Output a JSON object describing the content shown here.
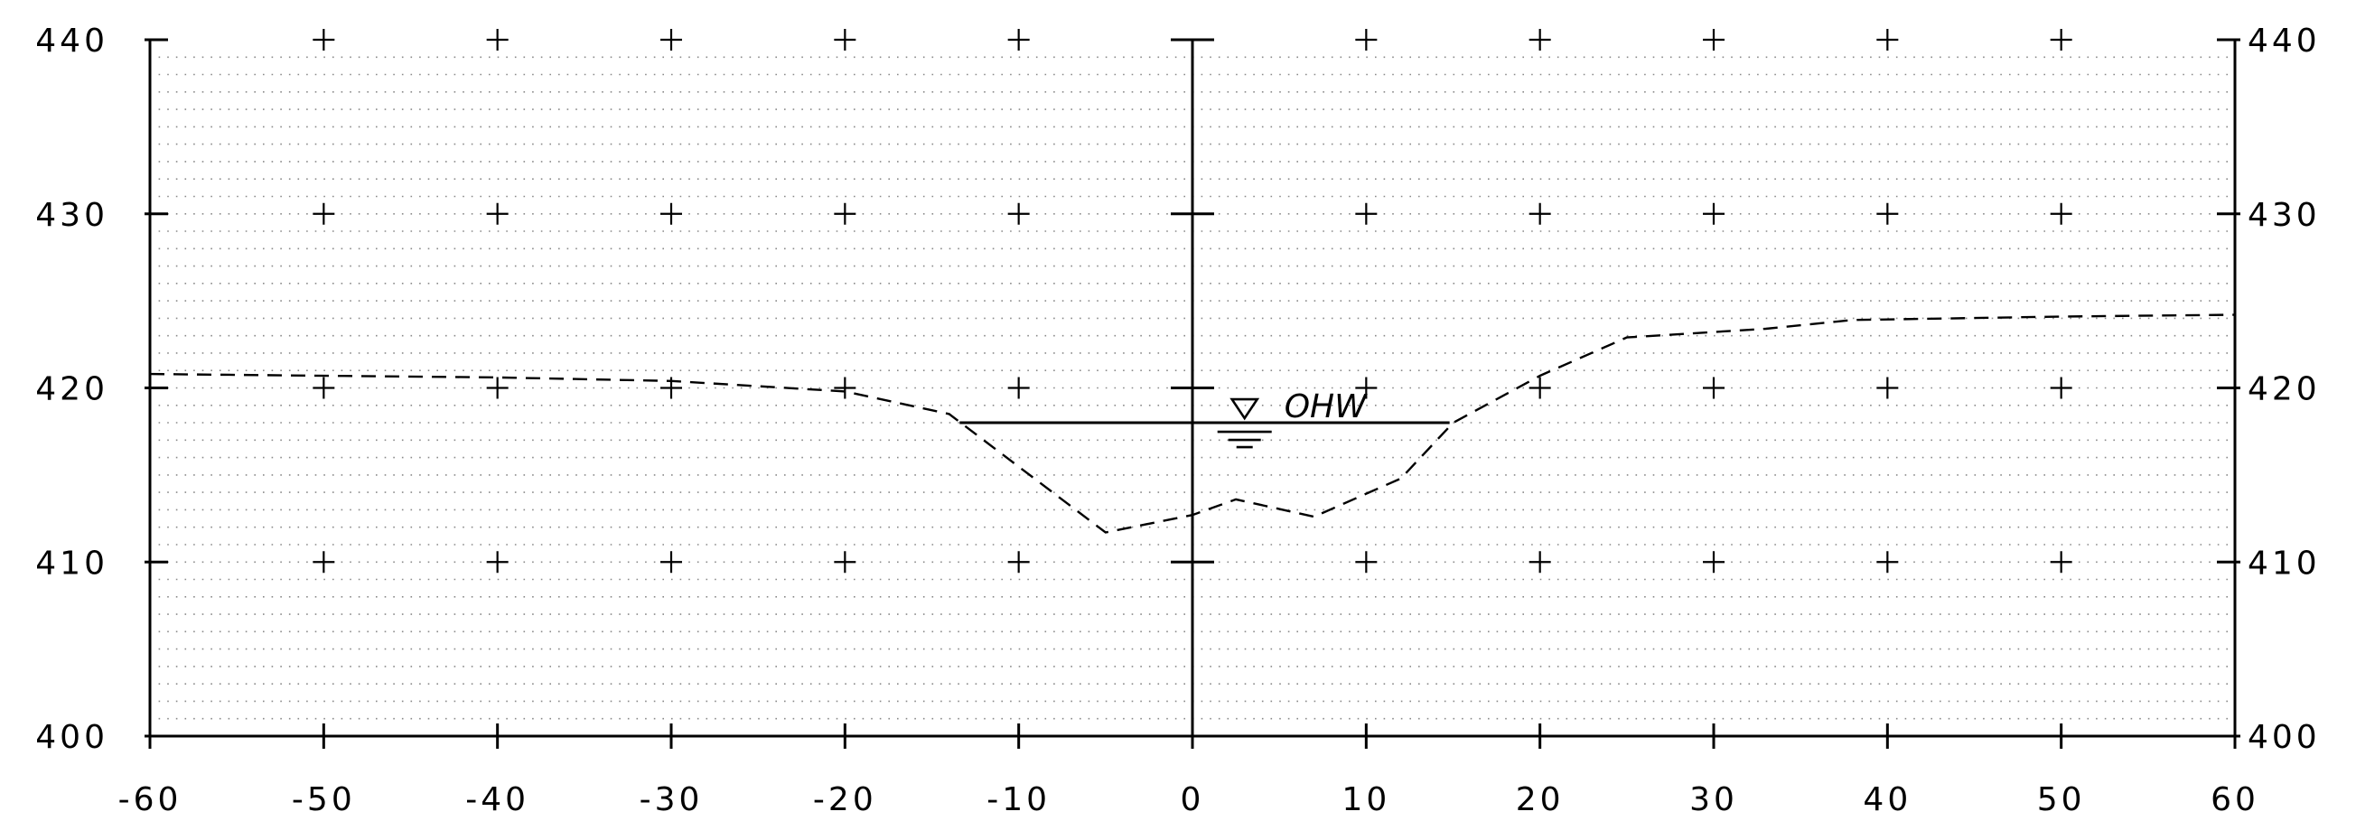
{
  "chart_data": {
    "type": "line",
    "title": "",
    "xlabel": "",
    "ylabel": "",
    "xlim": [
      -60,
      60
    ],
    "ylim": [
      400,
      440
    ],
    "x_ticks": [
      -60,
      -50,
      -40,
      -30,
      -20,
      -10,
      0,
      10,
      20,
      30,
      40,
      50,
      60
    ],
    "y_ticks": [
      400,
      410,
      420,
      430,
      440
    ],
    "x_tick_labels": [
      "-60",
      "-50",
      "-40",
      "-30",
      "-20",
      "-10",
      "0",
      "10",
      "20",
      "30",
      "40",
      "50",
      "60"
    ],
    "y_tick_labels": [
      "400",
      "410",
      "420",
      "430",
      "440"
    ],
    "grid": true,
    "series": [
      {
        "line_style": "dashed",
        "color": "#000000",
        "x": [
          -60,
          -40,
          -30,
          -20,
          -14,
          -5,
          0,
          2.5,
          7,
          12,
          15,
          20,
          25,
          33,
          38,
          50,
          60
        ],
        "y": [
          420.8,
          420.6,
          420.4,
          419.8,
          418.5,
          411.7,
          412.7,
          413.6,
          412.6,
          414.8,
          418.0,
          420.7,
          422.9,
          423.4,
          423.9,
          424.1,
          424.2
        ]
      }
    ],
    "water_level": {
      "label": "OHW",
      "elevation": 418,
      "x_start": -13.4,
      "x_end": 14.8,
      "symbol_x": 3
    }
  }
}
